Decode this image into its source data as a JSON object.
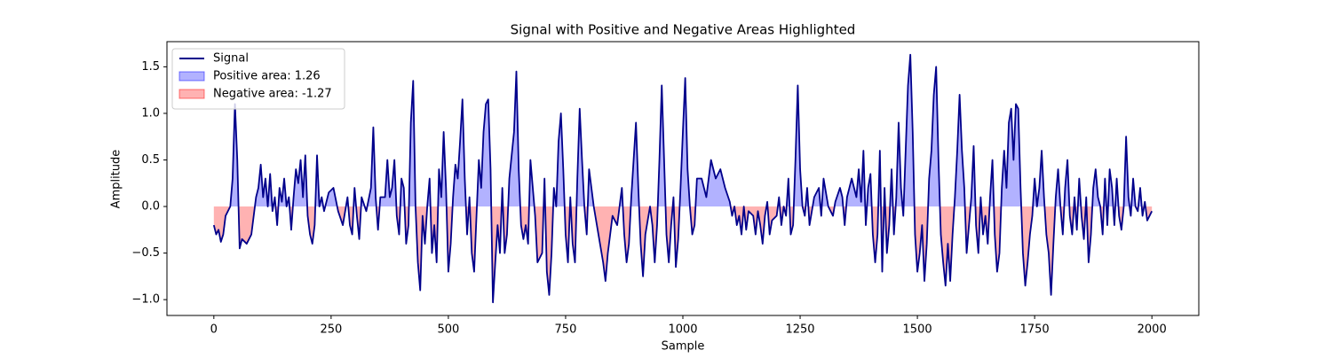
{
  "chart_data": {
    "type": "line",
    "title": "Signal with Positive and Negative Areas Highlighted",
    "xlabel": "Sample",
    "ylabel": "Amplitude",
    "x": [
      0,
      5,
      10,
      15,
      20,
      25,
      30,
      35,
      40,
      45,
      50,
      55,
      60,
      70,
      80,
      90,
      95,
      100,
      105,
      110,
      115,
      120,
      125,
      130,
      135,
      140,
      145,
      150,
      155,
      160,
      165,
      170,
      175,
      180,
      185,
      190,
      195,
      200,
      205,
      210,
      215,
      220,
      225,
      230,
      235,
      245,
      255,
      265,
      275,
      285,
      290,
      295,
      300,
      305,
      310,
      315,
      325,
      335,
      340,
      345,
      350,
      355,
      365,
      370,
      375,
      380,
      385,
      390,
      395,
      400,
      405,
      410,
      415,
      420,
      425,
      430,
      435,
      440,
      445,
      450,
      455,
      460,
      465,
      470,
      475,
      480,
      485,
      490,
      495,
      500,
      505,
      510,
      515,
      520,
      525,
      530,
      535,
      540,
      545,
      550,
      555,
      560,
      565,
      570,
      575,
      580,
      585,
      590,
      595,
      600,
      605,
      610,
      615,
      620,
      625,
      630,
      640,
      645,
      650,
      655,
      660,
      665,
      670,
      675,
      685,
      690,
      700,
      705,
      710,
      715,
      720,
      725,
      730,
      735,
      740,
      745,
      750,
      755,
      760,
      765,
      770,
      775,
      780,
      785,
      790,
      795,
      800,
      810,
      820,
      830,
      835,
      840,
      850,
      860,
      870,
      875,
      880,
      885,
      890,
      900,
      905,
      910,
      915,
      920,
      930,
      935,
      940,
      945,
      950,
      955,
      960,
      965,
      970,
      975,
      980,
      985,
      990,
      995,
      1000,
      1005,
      1010,
      1015,
      1020,
      1025,
      1030,
      1040,
      1050,
      1060,
      1070,
      1080,
      1090,
      1100,
      1105,
      1110,
      1115,
      1120,
      1125,
      1130,
      1135,
      1140,
      1150,
      1155,
      1160,
      1165,
      1170,
      1175,
      1180,
      1185,
      1190,
      1200,
      1205,
      1210,
      1215,
      1220,
      1225,
      1230,
      1235,
      1240,
      1245,
      1250,
      1255,
      1260,
      1265,
      1270,
      1280,
      1290,
      1295,
      1300,
      1310,
      1320,
      1325,
      1335,
      1340,
      1345,
      1350,
      1360,
      1370,
      1375,
      1380,
      1385,
      1390,
      1395,
      1400,
      1405,
      1410,
      1415,
      1420,
      1425,
      1430,
      1435,
      1440,
      1445,
      1450,
      1455,
      1460,
      1465,
      1470,
      1475,
      1480,
      1485,
      1490,
      1495,
      1500,
      1505,
      1510,
      1515,
      1520,
      1525,
      1530,
      1535,
      1540,
      1545,
      1550,
      1555,
      1560,
      1565,
      1570,
      1575,
      1580,
      1585,
      1590,
      1595,
      1600,
      1605,
      1610,
      1615,
      1620,
      1625,
      1630,
      1635,
      1640,
      1645,
      1650,
      1655,
      1660,
      1665,
      1670,
      1675,
      1680,
      1685,
      1690,
      1695,
      1700,
      1705,
      1710,
      1715,
      1720,
      1725,
      1730,
      1735,
      1740,
      1745,
      1750,
      1755,
      1760,
      1765,
      1770,
      1775,
      1780,
      1785,
      1790,
      1795,
      1800,
      1805,
      1810,
      1815,
      1820,
      1825,
      1830,
      1835,
      1840,
      1845,
      1850,
      1855,
      1860,
      1865,
      1870,
      1875,
      1880,
      1885,
      1890,
      1895,
      1900,
      1905,
      1910,
      1915,
      1920,
      1925,
      1930,
      1935,
      1940,
      1945,
      1950,
      1955,
      1960,
      1965,
      1970,
      1975,
      1980,
      1985,
      1990,
      1995,
      2000
    ],
    "series": [
      {
        "name": "Signal",
        "color": "#00008b",
        "values": [
          -0.2,
          -0.3,
          -0.25,
          -0.38,
          -0.3,
          -0.1,
          -0.05,
          0.0,
          0.3,
          1.1,
          0.5,
          -0.45,
          -0.35,
          -0.4,
          -0.3,
          0.1,
          0.2,
          0.45,
          0.1,
          0.3,
          0.0,
          0.35,
          -0.05,
          0.1,
          -0.2,
          0.2,
          0.05,
          0.3,
          0.0,
          0.1,
          -0.25,
          0.1,
          0.4,
          0.25,
          0.5,
          0.1,
          0.55,
          -0.1,
          -0.3,
          -0.4,
          -0.2,
          0.55,
          0.0,
          0.1,
          -0.05,
          0.15,
          0.2,
          -0.05,
          -0.2,
          0.1,
          -0.2,
          -0.3,
          0.2,
          -0.1,
          -0.35,
          0.1,
          -0.05,
          0.2,
          0.85,
          0.1,
          -0.25,
          0.1,
          0.1,
          0.5,
          0.1,
          0.2,
          0.5,
          -0.1,
          -0.3,
          0.3,
          0.2,
          -0.4,
          -0.2,
          0.9,
          1.35,
          0.0,
          -0.6,
          -0.9,
          -0.1,
          -0.4,
          0.0,
          0.3,
          -0.5,
          -0.2,
          -0.6,
          0.4,
          0.1,
          0.8,
          0.2,
          -0.7,
          -0.4,
          0.1,
          0.45,
          0.3,
          0.7,
          1.15,
          0.3,
          -0.3,
          0.1,
          -0.5,
          -0.7,
          -0.1,
          0.5,
          0.2,
          0.8,
          1.1,
          1.15,
          0.4,
          -1.03,
          -0.6,
          -0.2,
          -0.5,
          0.2,
          -0.5,
          -0.3,
          0.3,
          0.8,
          1.45,
          0.4,
          -0.2,
          -0.35,
          -0.2,
          -0.4,
          0.5,
          -0.1,
          -0.6,
          -0.5,
          0.3,
          -0.7,
          -0.95,
          -0.5,
          0.2,
          0.0,
          0.7,
          1.0,
          0.4,
          -0.3,
          -0.6,
          0.1,
          -0.4,
          -0.6,
          0.3,
          1.05,
          0.5,
          0.0,
          -0.3,
          0.4,
          0.0,
          -0.3,
          -0.6,
          -0.8,
          -0.5,
          -0.1,
          -0.2,
          0.2,
          -0.3,
          -0.6,
          -0.4,
          0.1,
          0.9,
          0.2,
          -0.4,
          -0.75,
          -0.3,
          0.0,
          -0.2,
          -0.6,
          -0.2,
          0.5,
          1.3,
          0.5,
          -0.3,
          -0.6,
          -0.2,
          0.1,
          -0.65,
          -0.35,
          0.2,
          0.8,
          1.38,
          0.4,
          0.0,
          -0.3,
          -0.2,
          0.3,
          0.3,
          0.1,
          0.5,
          0.3,
          0.4,
          0.2,
          0.05,
          -0.1,
          0.0,
          -0.2,
          -0.1,
          -0.3,
          0.0,
          -0.25,
          -0.05,
          -0.1,
          -0.3,
          -0.05,
          -0.2,
          -0.4,
          -0.1,
          0.05,
          -0.3,
          -0.15,
          -0.1,
          0.1,
          -0.2,
          0.0,
          -0.1,
          0.3,
          -0.3,
          -0.2,
          0.5,
          1.3,
          0.4,
          0.0,
          -0.1,
          0.2,
          -0.2,
          0.1,
          0.2,
          -0.1,
          0.3,
          0.0,
          -0.1,
          0.05,
          0.2,
          0.1,
          -0.2,
          0.1,
          0.3,
          0.1,
          0.4,
          0.05,
          0.6,
          -0.2,
          0.2,
          0.35,
          -0.3,
          -0.6,
          -0.3,
          0.6,
          -0.7,
          0.2,
          -0.5,
          -0.2,
          0.4,
          -0.3,
          0.1,
          0.9,
          0.2,
          -0.1,
          0.6,
          1.3,
          1.63,
          0.8,
          -0.3,
          -0.7,
          -0.5,
          -0.2,
          -0.8,
          -0.4,
          0.3,
          0.6,
          1.2,
          1.5,
          0.5,
          -0.3,
          -0.6,
          -0.85,
          -0.4,
          -0.8,
          -0.3,
          0.1,
          0.6,
          1.2,
          0.6,
          0.2,
          -0.5,
          -0.2,
          0.1,
          0.65,
          -0.2,
          -0.5,
          0.1,
          -0.3,
          -0.1,
          -0.4,
          0.1,
          0.5,
          -0.3,
          -0.7,
          -0.5,
          0.2,
          0.6,
          0.2,
          0.9,
          1.05,
          0.5,
          1.1,
          1.05,
          0.2,
          -0.5,
          -0.85,
          -0.6,
          -0.3,
          -0.1,
          0.3,
          0.0,
          0.2,
          0.6,
          0.1,
          -0.3,
          -0.5,
          -0.95,
          -0.4,
          0.1,
          0.4,
          0.0,
          -0.3,
          0.2,
          0.5,
          -0.1,
          -0.3,
          0.1,
          -0.25,
          0.3,
          -0.1,
          -0.35,
          0.1,
          -0.6,
          -0.3,
          0.2,
          0.4,
          0.1,
          0.0,
          -0.3,
          0.3,
          -0.2,
          0.4,
          0.2,
          -0.2,
          0.3,
          -0.1,
          -0.25,
          0.0,
          0.75,
          0.1,
          -0.1,
          0.3,
          0.0,
          -0.05,
          0.2,
          -0.1,
          0.05,
          -0.15,
          -0.1,
          -0.05
        ]
      }
    ],
    "areas": [
      {
        "name": "Positive area: 1.26",
        "color": "rgba(0,0,255,0.3)",
        "side": "positive"
      },
      {
        "name": "Negative area: -1.27",
        "color": "rgba(255,0,0,0.3)",
        "side": "negative"
      }
    ],
    "xlim": [
      -100,
      2100
    ],
    "xticks": [
      0,
      250,
      500,
      750,
      1000,
      1250,
      1500,
      1750,
      2000
    ],
    "ylim": [
      -1.17,
      1.77
    ],
    "yticks": [
      {
        "value": -1,
        "label": "−1.0"
      },
      {
        "value": -0.5,
        "label": "−0.5"
      },
      {
        "value": 0,
        "label": "0.0"
      },
      {
        "value": 0.5,
        "label": "0.5"
      },
      {
        "value": 1,
        "label": "1.0"
      },
      {
        "value": 1.5,
        "label": "1.5"
      }
    ],
    "legend": "upper left",
    "grid": false
  }
}
